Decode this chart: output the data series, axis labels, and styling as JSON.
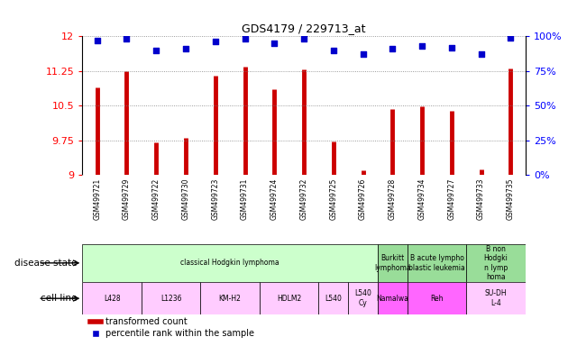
{
  "title": "GDS4179 / 229713_at",
  "samples": [
    "GSM499721",
    "GSM499729",
    "GSM499722",
    "GSM499730",
    "GSM499723",
    "GSM499731",
    "GSM499724",
    "GSM499732",
    "GSM499725",
    "GSM499726",
    "GSM499728",
    "GSM499734",
    "GSM499727",
    "GSM499733",
    "GSM499735"
  ],
  "transformed_counts": [
    10.9,
    11.25,
    9.7,
    9.8,
    11.15,
    11.35,
    10.85,
    11.28,
    9.72,
    9.1,
    10.42,
    10.48,
    10.38,
    9.12,
    11.3
  ],
  "percentile_ranks": [
    97,
    98,
    90,
    91,
    96,
    98,
    95,
    98,
    90,
    87,
    91,
    93,
    92,
    87,
    99
  ],
  "ylim": [
    9,
    12
  ],
  "yticks": [
    9,
    9.75,
    10.5,
    11.25,
    12
  ],
  "bar_color": "#cc0000",
  "dot_color": "#0000cc",
  "disease_states": [
    {
      "label": "classical Hodgkin lymphoma",
      "start": 0,
      "end": 10,
      "color": "#ccffcc"
    },
    {
      "label": "",
      "start": 9,
      "end": 10,
      "color": "#ccffcc"
    },
    {
      "label": "Burkitt\nlymphoma",
      "start": 10,
      "end": 11,
      "color": "#99ee99"
    },
    {
      "label": "B acute lympho\nblastic leukemia",
      "start": 11,
      "end": 13,
      "color": "#99ee99"
    },
    {
      "label": "B non\nHodgki\nn lymp\nhoma",
      "start": 13,
      "end": 15,
      "color": "#99ee99"
    }
  ],
  "cell_lines": [
    {
      "label": "L428",
      "start": 0,
      "end": 2,
      "color": "#ffccff"
    },
    {
      "label": "L1236",
      "start": 2,
      "end": 4,
      "color": "#ffccff"
    },
    {
      "label": "KM-H2",
      "start": 4,
      "end": 6,
      "color": "#ffccff"
    },
    {
      "label": "HDLM2",
      "start": 6,
      "end": 8,
      "color": "#ffccff"
    },
    {
      "label": "L540",
      "start": 8,
      "end": 9,
      "color": "#ffccff"
    },
    {
      "label": "L540\nCy",
      "start": 9,
      "end": 10,
      "color": "#ffccff"
    },
    {
      "label": "Namalwa",
      "start": 10,
      "end": 11,
      "color": "#ff66ff"
    },
    {
      "label": "Reh",
      "start": 11,
      "end": 13,
      "color": "#ff66ff"
    },
    {
      "label": "SU-DH\nL-4",
      "start": 13,
      "end": 15,
      "color": "#ffccff"
    }
  ],
  "legend_items": [
    {
      "color": "#cc0000",
      "label": "transformed count"
    },
    {
      "color": "#0000cc",
      "label": "percentile rank within the sample"
    }
  ],
  "xtick_bg": "#d0d0d0",
  "left_label_color": "#000000",
  "pct_labels": [
    "0%",
    "25%",
    "50%",
    "75%",
    "100%"
  ]
}
